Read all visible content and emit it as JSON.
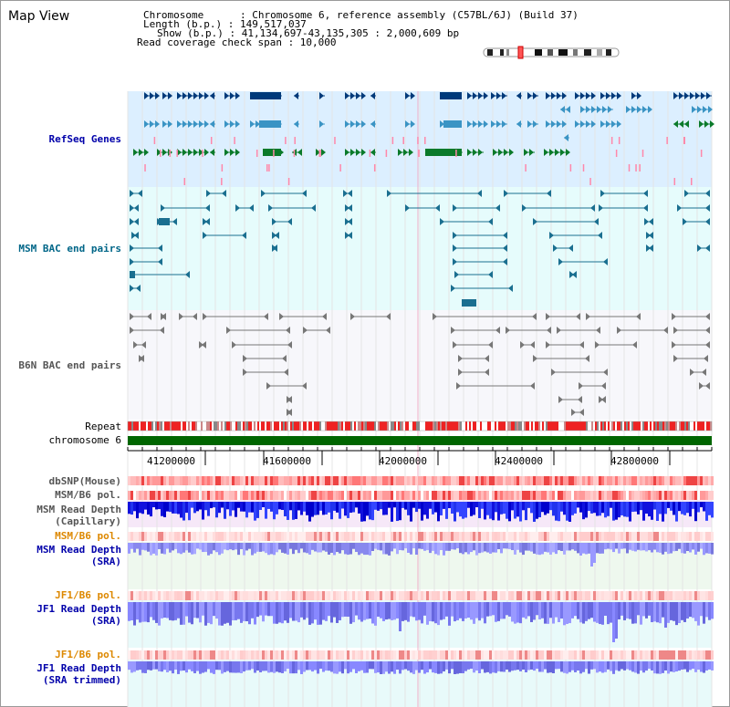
{
  "app": {
    "title": "Map View"
  },
  "info": {
    "chromosome": "Chromosome      : Chromosome 6, reference assembly (C57BL/6J) (Build 37)",
    "length": "Length (b.p.) : 149,517,037",
    "show": "Show (b.p.) : 41,134,697-43,135,305 : 2,000,609 bp",
    "coverage": "Read coverage check span : 10,000"
  },
  "tracks": {
    "refseq": "RefSeq Genes",
    "msm_bac": "MSM BAC end pairs",
    "b6n_bac": "B6N BAC end pairs",
    "repeat": "Repeat",
    "chromosome": "chromosome 6",
    "dbsnp": "dbSNP(Mouse)",
    "msm_b6_pol_1": "MSM/B6 pol.",
    "msm_depth_cap_1": "MSM Read Depth",
    "msm_depth_cap_2": "(Capillary)",
    "msm_b6_pol_2": "MSM/B6 pol.",
    "msm_depth_sra_1": "MSM Read Depth",
    "msm_depth_sra_2": "(SRA)",
    "jf1_b6_pol_1": "JF1/B6 pol.",
    "jf1_depth_sra_1": "JF1 Read Depth",
    "jf1_depth_sra_2": "(SRA)",
    "jf1_b6_pol_2": "JF1/B6 pol.",
    "jf1_depth_trim_1": "JF1 Read Depth",
    "jf1_depth_trim_2": "(SRA trimmed)"
  },
  "axis": {
    "ticks": [
      "41200000",
      "41600000",
      "42000000",
      "42400000",
      "42800000"
    ]
  },
  "colors": {
    "refseq_bg": "#dcefff",
    "bac_bg": "#e6fcfc",
    "b6n_bg": "#f7f7fb",
    "gene_dark": "#003a7a",
    "gene_mid": "#3a94c4",
    "gene_green": "#0b7a2a",
    "bac_teal": "#1a6f90",
    "bac_gray": "#777777",
    "chrom_green": "#006600",
    "depth_blue": "#3333ee"
  }
}
